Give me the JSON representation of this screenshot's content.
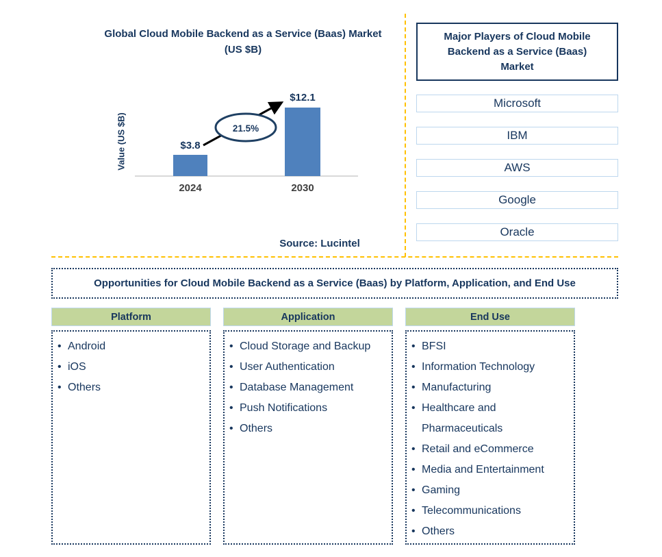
{
  "chart_data": {
    "type": "bar",
    "title": "Global Cloud Mobile Backend as a Service (Baas) Market (US $B)",
    "categories": [
      "2024",
      "2030"
    ],
    "values": [
      3.8,
      12.1
    ],
    "value_labels": [
      "$3.8",
      "$12.1"
    ],
    "ylabel": "Value (US $B)",
    "xlabel": "",
    "annotation": "21.5%",
    "source": "Source: Lucintel",
    "bar_color": "#4F81BD",
    "ylim": [
      0,
      12.1
    ],
    "grid": false,
    "legend": false
  },
  "colors": {
    "navy_text": "#17365D",
    "bar_blue": "#4F81BD",
    "header_green": "#C3D69B",
    "divider_orange": "#FFC000",
    "light_blue_border": "#BDD7EE",
    "baseline_gray": "#D9D9D9"
  },
  "major_players": {
    "title": "Major Players of Cloud Mobile Backend as a Service (Baas) Market",
    "players": [
      "Microsoft",
      "IBM",
      "AWS",
      "Google",
      "Oracle"
    ]
  },
  "banner": {
    "text": "Opportunities for Cloud Mobile Backend as a Service (Baas) by Platform, Application, and End Use"
  },
  "columns": [
    {
      "header": "Platform",
      "items": [
        "Android",
        "iOS",
        "Others"
      ]
    },
    {
      "header": "Application",
      "items": [
        "Cloud Storage and Backup",
        "User Authentication",
        "Database Management",
        "Push Notifications",
        "Others"
      ]
    },
    {
      "header": "End Use",
      "items": [
        "BFSI",
        "Information Technology",
        "Manufacturing",
        "Healthcare and Pharmaceuticals",
        "Retail and eCommerce",
        "Media and Entertainment",
        "Gaming",
        "Telecommunications",
        "Others"
      ]
    }
  ]
}
